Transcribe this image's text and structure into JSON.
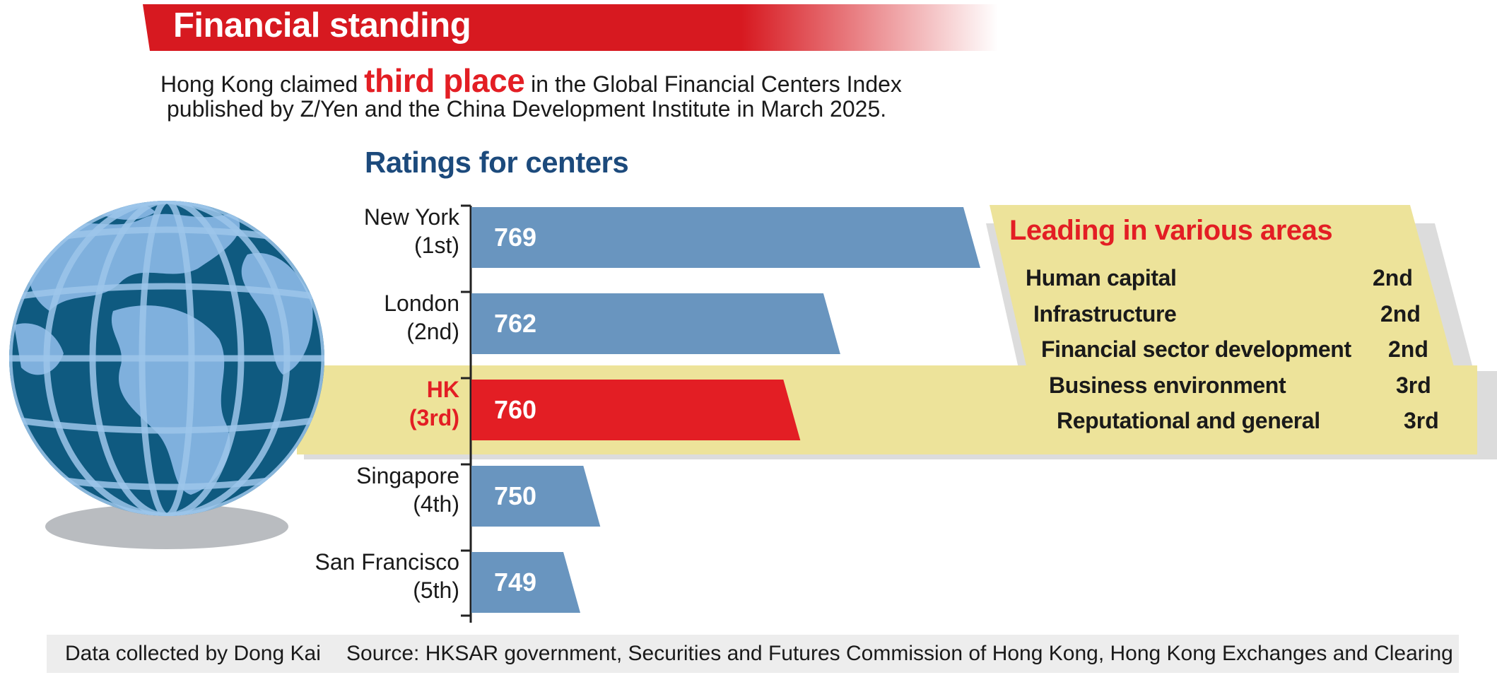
{
  "header": {
    "title": "Financial standing",
    "intro_before": "Hong Kong claimed ",
    "intro_highlight": "third place",
    "intro_after": " in the Global Financial Centers Index",
    "intro_line2": "published by Z/Yen and the China Development Institute in March 2025."
  },
  "colors": {
    "brand_red": "#e31e24",
    "bar_blue": "#6995bf",
    "highlight_band": "#ede39a",
    "heading_blue": "#1c4a7c",
    "shadow_gray": "#dcdcdc"
  },
  "chart_data": {
    "type": "bar",
    "orientation": "horizontal",
    "title": "Ratings for centers",
    "categories": [
      {
        "name": "New York",
        "rank": "(1st)"
      },
      {
        "name": "London",
        "rank": "(2nd)"
      },
      {
        "name": "HK",
        "rank": "(3rd)"
      },
      {
        "name": "Singapore",
        "rank": "(4th)"
      },
      {
        "name": "San Francisco",
        "rank": "(5th)"
      }
    ],
    "values": [
      769,
      762,
      760,
      750,
      749
    ],
    "value_labels": [
      "769",
      "762",
      "760",
      "750",
      "749"
    ],
    "highlight_index": 2
  },
  "panel": {
    "title": "Leading in various areas",
    "items": [
      {
        "area": "Human capital",
        "rank": "2nd"
      },
      {
        "area": "Infrastructure",
        "rank": "2nd"
      },
      {
        "area": "Financial sector development",
        "rank": "2nd"
      },
      {
        "area": "Business environment",
        "rank": "3rd"
      },
      {
        "area": "Reputational and general",
        "rank": "3rd"
      }
    ]
  },
  "footer": {
    "credit": "Data collected by Dong Kai",
    "source": "Source: HKSAR government, Securities and Futures Commission of Hong Kong, Hong Kong Exchanges and Clearing"
  },
  "icons": {
    "globe": "globe-icon"
  }
}
